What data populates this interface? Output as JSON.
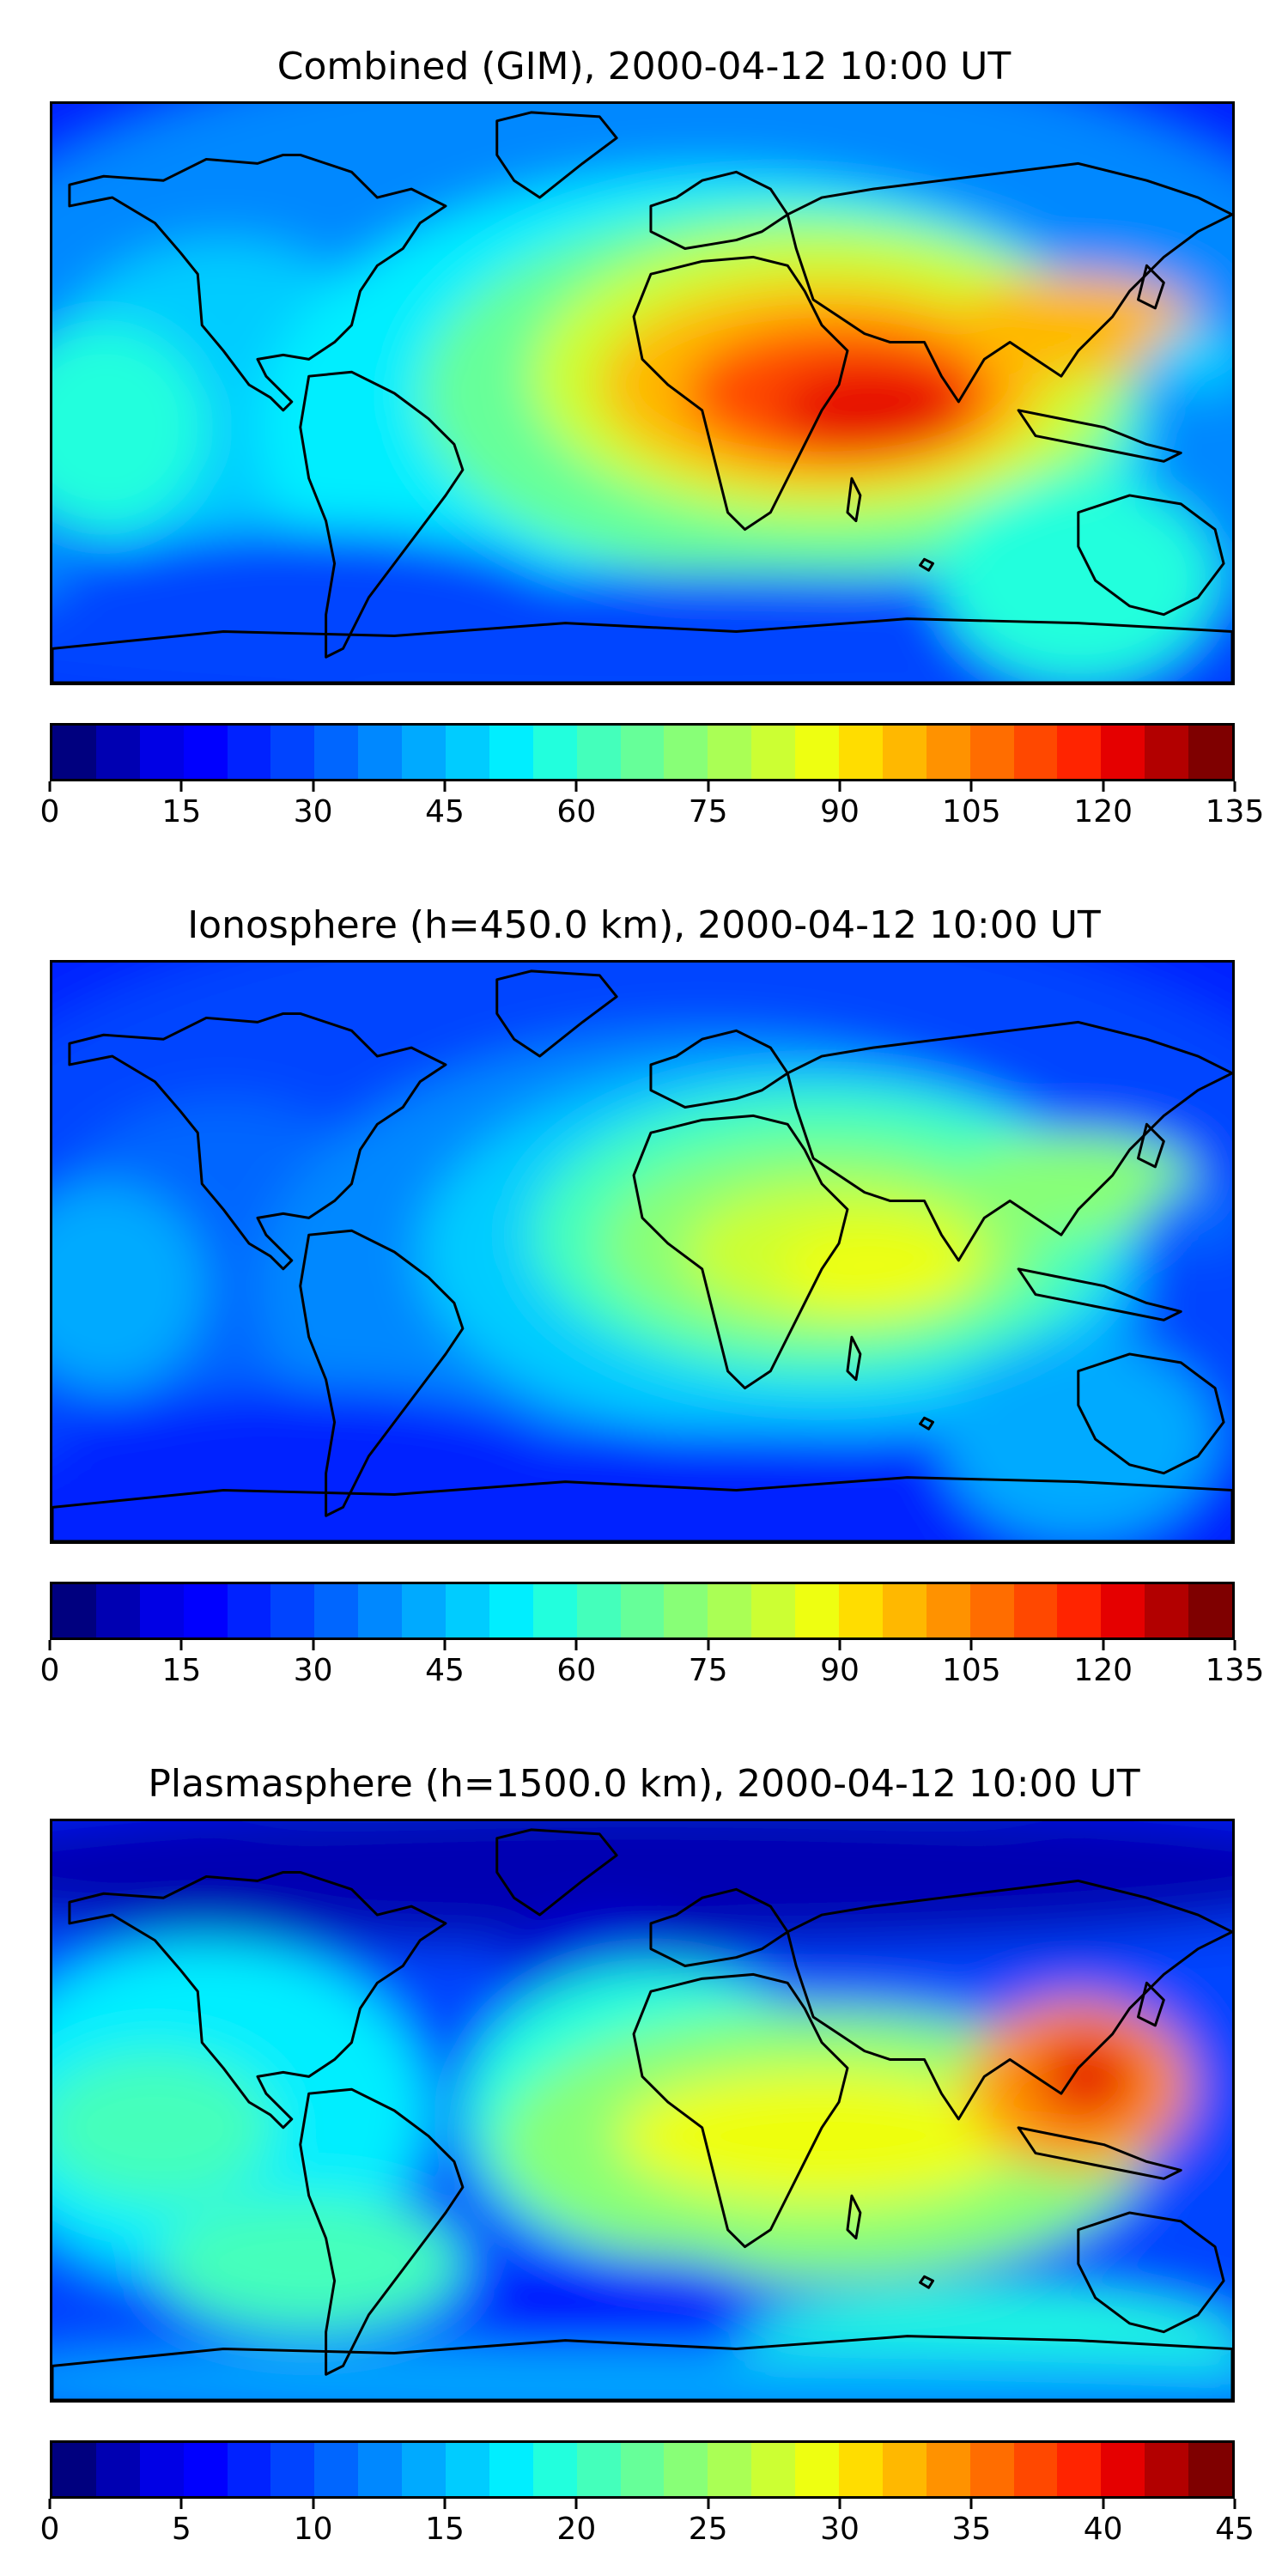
{
  "panels": [
    {
      "title": "Combined (GIM), 2000-04-12 10:00 UT",
      "colorbar_max": 135,
      "tick_labels": [
        "0",
        "15",
        "30",
        "45",
        "60",
        "75",
        "90",
        "105",
        "120",
        "135"
      ],
      "field_scale": 1.0
    },
    {
      "title": "Ionosphere  (h=450.0 km), 2000-04-12 10:00 UT",
      "colorbar_max": 135,
      "tick_labels": [
        "0",
        "15",
        "30",
        "45",
        "60",
        "75",
        "90",
        "105",
        "120",
        "135"
      ],
      "field_scale": 0.72
    },
    {
      "title": "Plasmasphere (h=1500.0 km), 2000-04-12 10:00 UT",
      "colorbar_max": 45,
      "tick_labels": [
        "0",
        "5",
        "10",
        "15",
        "20",
        "25",
        "30",
        "35",
        "40",
        "45"
      ],
      "field_scale": 0.62
    }
  ],
  "colormap": [
    "#00007f",
    "#0000b2",
    "#0000e5",
    "#0000ff",
    "#0022ff",
    "#0044ff",
    "#0066ff",
    "#0088ff",
    "#00aaff",
    "#00ccff",
    "#00eeff",
    "#22ffdd",
    "#44ffbb",
    "#66ff99",
    "#88ff77",
    "#aaff55",
    "#ccff33",
    "#eeff11",
    "#ffdd00",
    "#ffb800",
    "#ff9200",
    "#ff6d00",
    "#ff4800",
    "#ff2400",
    "#e50000",
    "#b20000",
    "#7f0000"
  ]
}
